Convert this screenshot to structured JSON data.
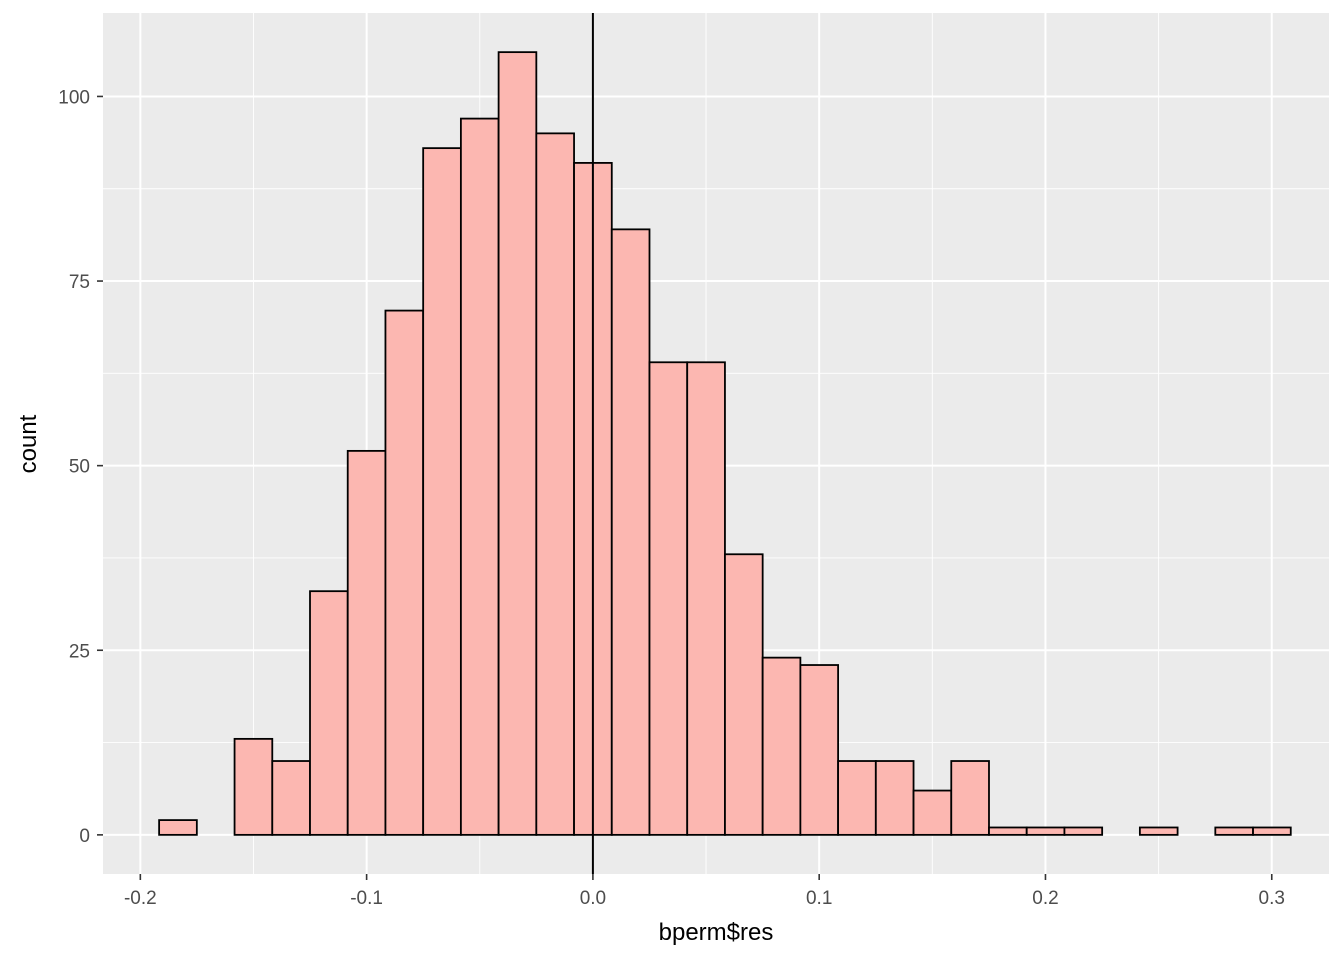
{
  "chart_data": {
    "type": "bar",
    "subtype": "histogram",
    "title": "",
    "xlabel": "bperm$res",
    "ylabel": "count",
    "xlim": [
      -0.2165,
      0.3253
    ],
    "ylim": [
      -5.3,
      111.3
    ],
    "x_ticks": [
      {
        "value": -0.2,
        "label": "-0.2"
      },
      {
        "value": -0.1,
        "label": "-0.1"
      },
      {
        "value": 0.0,
        "label": "0.0"
      },
      {
        "value": 0.1,
        "label": "0.1"
      },
      {
        "value": 0.2,
        "label": "0.2"
      },
      {
        "value": 0.3,
        "label": "0.3"
      }
    ],
    "y_ticks": [
      {
        "value": 0,
        "label": "0"
      },
      {
        "value": 25,
        "label": "25"
      },
      {
        "value": 50,
        "label": "50"
      },
      {
        "value": 75,
        "label": "75"
      },
      {
        "value": 100,
        "label": "100"
      }
    ],
    "bin_start": -0.1917,
    "bin_width": 0.01667,
    "counts": [
      2,
      0,
      13,
      10,
      33,
      52,
      71,
      93,
      97,
      106,
      95,
      91,
      82,
      64,
      64,
      38,
      24,
      23,
      10,
      10,
      6,
      10,
      1,
      1,
      1,
      0,
      1,
      0,
      1,
      1
    ],
    "vline_x": 0.0,
    "grid": true,
    "legend": "none",
    "colors": {
      "panel_background": "#ebebeb",
      "grid_major": "#ffffff",
      "bar_fill": "#fcb7b1",
      "bar_outline": "#000000",
      "vline": "#000000",
      "tick_label": "#4d4d4d",
      "axis_title": "#000000"
    }
  }
}
